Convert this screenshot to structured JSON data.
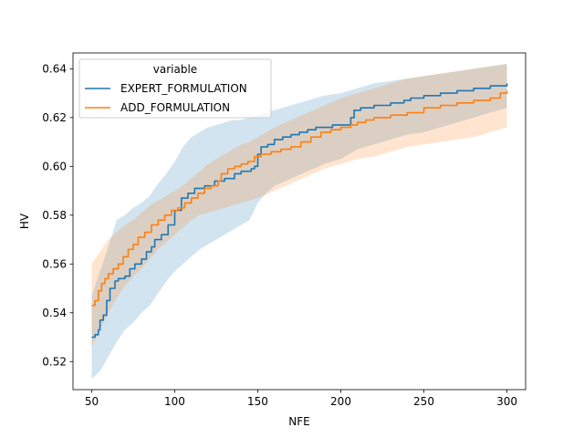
{
  "chart_data": {
    "type": "line",
    "xlabel": "NFE",
    "ylabel": "HV",
    "xlim": [
      38.75,
      311.25
    ],
    "ylim": [
      0.5085,
      0.6465
    ],
    "x_ticks": [
      50,
      100,
      150,
      200,
      250,
      300
    ],
    "y_ticks": [
      0.52,
      0.54,
      0.56,
      0.58,
      0.6,
      0.62,
      0.64
    ],
    "x_tick_labels": [
      "50",
      "100",
      "150",
      "200",
      "250",
      "300"
    ],
    "y_tick_labels": [
      "0.52",
      "0.54",
      "0.56",
      "0.58",
      "0.60",
      "0.62",
      "0.64"
    ],
    "grid": false,
    "legend": {
      "title": "variable",
      "placement": "top-left"
    },
    "series": [
      {
        "name": "EXPERT_FORMULATION",
        "color": "#1f77b4",
        "points": [
          [
            50,
            0.53
          ],
          [
            52,
            0.531
          ],
          [
            54,
            0.533
          ],
          [
            55,
            0.537
          ],
          [
            57,
            0.539
          ],
          [
            59,
            0.545
          ],
          [
            61,
            0.55
          ],
          [
            64,
            0.553
          ],
          [
            66,
            0.554
          ],
          [
            70,
            0.555
          ],
          [
            73,
            0.558
          ],
          [
            76,
            0.56
          ],
          [
            80,
            0.562
          ],
          [
            83,
            0.565
          ],
          [
            86,
            0.567
          ],
          [
            88,
            0.57
          ],
          [
            92,
            0.572
          ],
          [
            96,
            0.576
          ],
          [
            100,
            0.582
          ],
          [
            104,
            0.587
          ],
          [
            108,
            0.589
          ],
          [
            112,
            0.591
          ],
          [
            118,
            0.592
          ],
          [
            124,
            0.594
          ],
          [
            130,
            0.595
          ],
          [
            136,
            0.597
          ],
          [
            140,
            0.598
          ],
          [
            146,
            0.599
          ],
          [
            148,
            0.6
          ],
          [
            150,
            0.605
          ],
          [
            152,
            0.608
          ],
          [
            156,
            0.609
          ],
          [
            160,
            0.611
          ],
          [
            165,
            0.612
          ],
          [
            170,
            0.613
          ],
          [
            175,
            0.614
          ],
          [
            180,
            0.615
          ],
          [
            185,
            0.616
          ],
          [
            190,
            0.616
          ],
          [
            195,
            0.617
          ],
          [
            200,
            0.617
          ],
          [
            204,
            0.617
          ],
          [
            206,
            0.62
          ],
          [
            208,
            0.623
          ],
          [
            212,
            0.624
          ],
          [
            220,
            0.625
          ],
          [
            230,
            0.626
          ],
          [
            238,
            0.627
          ],
          [
            242,
            0.628
          ],
          [
            250,
            0.629
          ],
          [
            260,
            0.63
          ],
          [
            270,
            0.631
          ],
          [
            280,
            0.632
          ],
          [
            290,
            0.633
          ],
          [
            300,
            0.634
          ]
        ],
        "band": [
          [
            50,
            0.513,
            0.547
          ],
          [
            55,
            0.516,
            0.557
          ],
          [
            60,
            0.522,
            0.567
          ],
          [
            65,
            0.528,
            0.578
          ],
          [
            70,
            0.533,
            0.58
          ],
          [
            75,
            0.536,
            0.583
          ],
          [
            80,
            0.54,
            0.585
          ],
          [
            85,
            0.543,
            0.588
          ],
          [
            90,
            0.548,
            0.593
          ],
          [
            95,
            0.553,
            0.597
          ],
          [
            100,
            0.557,
            0.602
          ],
          [
            105,
            0.56,
            0.608
          ],
          [
            110,
            0.563,
            0.612
          ],
          [
            115,
            0.566,
            0.614
          ],
          [
            120,
            0.568,
            0.616
          ],
          [
            125,
            0.57,
            0.617
          ],
          [
            130,
            0.572,
            0.618
          ],
          [
            135,
            0.574,
            0.619
          ],
          [
            140,
            0.576,
            0.619
          ],
          [
            145,
            0.578,
            0.62
          ],
          [
            150,
            0.585,
            0.621
          ],
          [
            155,
            0.589,
            0.622
          ],
          [
            160,
            0.592,
            0.623
          ],
          [
            170,
            0.595,
            0.625
          ],
          [
            180,
            0.598,
            0.627
          ],
          [
            190,
            0.601,
            0.629
          ],
          [
            200,
            0.603,
            0.63
          ],
          [
            210,
            0.607,
            0.632
          ],
          [
            220,
            0.609,
            0.634
          ],
          [
            230,
            0.611,
            0.635
          ],
          [
            240,
            0.613,
            0.636
          ],
          [
            250,
            0.614,
            0.637
          ],
          [
            260,
            0.616,
            0.638
          ],
          [
            270,
            0.618,
            0.639
          ],
          [
            280,
            0.62,
            0.64
          ],
          [
            290,
            0.622,
            0.641
          ],
          [
            300,
            0.624,
            0.642
          ]
        ]
      },
      {
        "name": "ADD_FORMULATION",
        "color": "#ff7f0e",
        "points": [
          [
            50,
            0.543
          ],
          [
            52,
            0.545
          ],
          [
            54,
            0.549
          ],
          [
            56,
            0.552
          ],
          [
            58,
            0.554
          ],
          [
            60,
            0.556
          ],
          [
            63,
            0.558
          ],
          [
            66,
            0.56
          ],
          [
            69,
            0.563
          ],
          [
            72,
            0.566
          ],
          [
            75,
            0.568
          ],
          [
            78,
            0.571
          ],
          [
            82,
            0.573
          ],
          [
            86,
            0.576
          ],
          [
            90,
            0.578
          ],
          [
            94,
            0.58
          ],
          [
            98,
            0.582
          ],
          [
            102,
            0.583
          ],
          [
            106,
            0.585
          ],
          [
            110,
            0.587
          ],
          [
            114,
            0.589
          ],
          [
            118,
            0.591
          ],
          [
            122,
            0.592
          ],
          [
            126,
            0.594
          ],
          [
            128,
            0.597
          ],
          [
            132,
            0.599
          ],
          [
            136,
            0.6
          ],
          [
            140,
            0.601
          ],
          [
            144,
            0.602
          ],
          [
            148,
            0.604
          ],
          [
            152,
            0.605
          ],
          [
            158,
            0.606
          ],
          [
            164,
            0.607
          ],
          [
            170,
            0.608
          ],
          [
            176,
            0.61
          ],
          [
            182,
            0.612
          ],
          [
            188,
            0.614
          ],
          [
            194,
            0.615
          ],
          [
            200,
            0.616
          ],
          [
            206,
            0.617
          ],
          [
            210,
            0.618
          ],
          [
            215,
            0.619
          ],
          [
            220,
            0.62
          ],
          [
            230,
            0.621
          ],
          [
            240,
            0.622
          ],
          [
            250,
            0.624
          ],
          [
            260,
            0.625
          ],
          [
            270,
            0.626
          ],
          [
            280,
            0.627
          ],
          [
            290,
            0.628
          ],
          [
            296,
            0.63
          ],
          [
            300,
            0.631
          ]
        ],
        "band": [
          [
            50,
            0.526,
            0.56
          ],
          [
            55,
            0.533,
            0.565
          ],
          [
            60,
            0.54,
            0.57
          ],
          [
            65,
            0.546,
            0.573
          ],
          [
            70,
            0.551,
            0.576
          ],
          [
            75,
            0.555,
            0.578
          ],
          [
            80,
            0.558,
            0.581
          ],
          [
            85,
            0.562,
            0.584
          ],
          [
            90,
            0.566,
            0.586
          ],
          [
            95,
            0.569,
            0.588
          ],
          [
            100,
            0.572,
            0.59
          ],
          [
            105,
            0.575,
            0.592
          ],
          [
            110,
            0.578,
            0.595
          ],
          [
            115,
            0.58,
            0.598
          ],
          [
            120,
            0.581,
            0.601
          ],
          [
            125,
            0.582,
            0.603
          ],
          [
            130,
            0.583,
            0.605
          ],
          [
            135,
            0.584,
            0.607
          ],
          [
            140,
            0.585,
            0.609
          ],
          [
            145,
            0.586,
            0.61
          ],
          [
            150,
            0.587,
            0.612
          ],
          [
            160,
            0.59,
            0.616
          ],
          [
            170,
            0.593,
            0.619
          ],
          [
            180,
            0.596,
            0.622
          ],
          [
            190,
            0.599,
            0.625
          ],
          [
            200,
            0.601,
            0.628
          ],
          [
            210,
            0.603,
            0.63
          ],
          [
            220,
            0.604,
            0.632
          ],
          [
            230,
            0.606,
            0.634
          ],
          [
            240,
            0.608,
            0.636
          ],
          [
            250,
            0.609,
            0.637
          ],
          [
            260,
            0.61,
            0.638
          ],
          [
            270,
            0.611,
            0.639
          ],
          [
            280,
            0.612,
            0.64
          ],
          [
            290,
            0.614,
            0.641
          ],
          [
            300,
            0.616,
            0.642
          ]
        ]
      }
    ]
  }
}
